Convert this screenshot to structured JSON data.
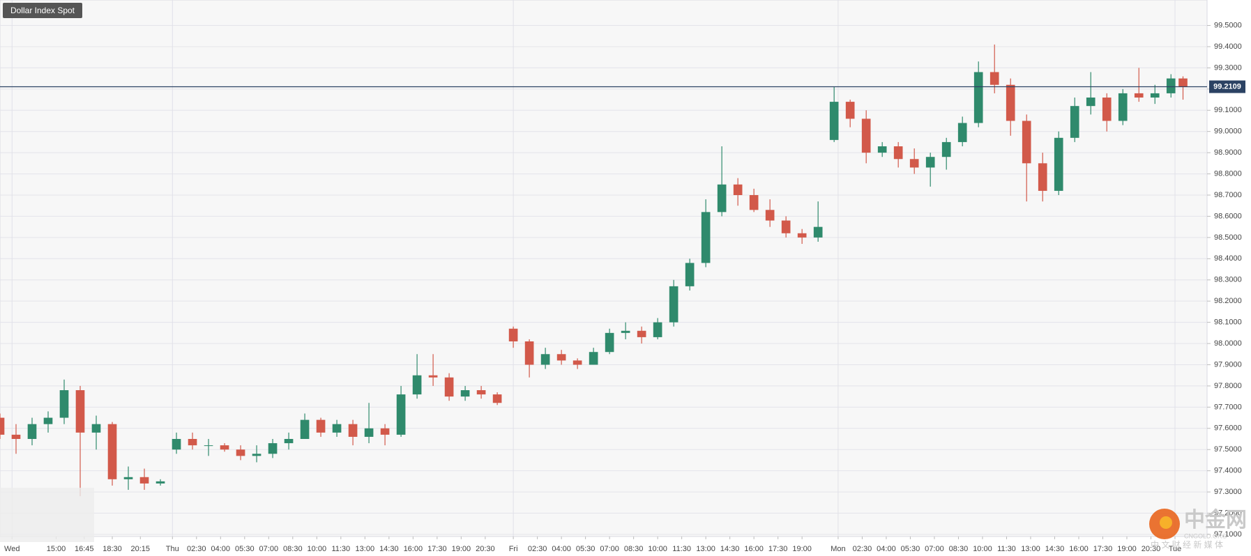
{
  "chart_data": {
    "type": "candlestick",
    "title": "Dollar Index Spot",
    "up_color": "#2f8a6c",
    "down_color": "#d2594a",
    "grid": true,
    "xlim": [
      0,
      301
    ],
    "ylim": [
      97.09,
      99.62
    ],
    "x": [
      0,
      4,
      8,
      12,
      16,
      20,
      24,
      28,
      32,
      36,
      40,
      44,
      48,
      52,
      56,
      60,
      64,
      68,
      72,
      76,
      80,
      84,
      88,
      92,
      96,
      100,
      104,
      108,
      112,
      116,
      120,
      124,
      128,
      132,
      136,
      140,
      144,
      148,
      152,
      156,
      160,
      164,
      168,
      172,
      176,
      180,
      184,
      188,
      192,
      196,
      200,
      204,
      208,
      212,
      216,
      220,
      224,
      228,
      232,
      236,
      240,
      244,
      248,
      252,
      256,
      260,
      264,
      268,
      272,
      276,
      280,
      284,
      288,
      292,
      295
    ],
    "open": [
      97.65,
      97.57,
      97.55,
      97.62,
      97.65,
      97.78,
      97.58,
      97.62,
      97.36,
      97.37,
      97.34,
      97.5,
      97.55,
      97.52,
      97.52,
      97.5,
      97.47,
      97.48,
      97.53,
      97.55,
      97.64,
      97.58,
      97.62,
      97.56,
      97.6,
      97.57,
      97.76,
      97.85,
      97.84,
      97.75,
      97.78,
      97.76,
      98.07,
      98.01,
      97.9,
      97.95,
      97.92,
      97.9,
      97.96,
      98.05,
      98.06,
      98.03,
      98.1,
      98.27,
      98.38,
      98.62,
      98.75,
      98.7,
      98.63,
      98.58,
      98.52,
      98.5,
      98.96,
      99.14,
      99.06,
      98.9,
      98.93,
      98.87,
      98.83,
      98.88,
      98.95,
      99.04,
      99.28,
      99.22,
      99.05,
      98.85,
      98.72,
      98.97,
      99.12,
      99.16,
      99.05,
      99.18,
      99.16,
      99.18,
      99.25
    ],
    "high": [
      97.67,
      97.62,
      97.65,
      97.68,
      97.83,
      97.8,
      97.66,
      97.63,
      97.42,
      97.41,
      97.36,
      97.58,
      97.58,
      97.55,
      97.53,
      97.52,
      97.52,
      97.55,
      97.58,
      97.67,
      97.65,
      97.64,
      97.64,
      97.72,
      97.62,
      97.8,
      97.95,
      97.95,
      97.86,
      97.8,
      97.8,
      97.77,
      98.08,
      98.02,
      97.98,
      97.97,
      97.93,
      97.98,
      98.07,
      98.1,
      98.08,
      98.12,
      98.3,
      98.4,
      98.68,
      98.93,
      98.78,
      98.73,
      98.68,
      98.6,
      98.54,
      98.67,
      99.21,
      99.15,
      99.1,
      98.95,
      98.95,
      98.92,
      98.9,
      98.97,
      99.07,
      99.33,
      99.41,
      99.25,
      99.08,
      98.9,
      99.0,
      99.16,
      99.28,
      99.18,
      99.2,
      99.3,
      99.22,
      99.27,
      99.26
    ],
    "low": [
      97.55,
      97.48,
      97.52,
      97.58,
      97.62,
      97.28,
      97.5,
      97.33,
      97.31,
      97.31,
      97.33,
      97.48,
      97.5,
      97.47,
      97.49,
      97.45,
      97.44,
      97.46,
      97.5,
      97.55,
      97.56,
      97.56,
      97.52,
      97.53,
      97.52,
      97.56,
      97.74,
      97.8,
      97.73,
      97.73,
      97.74,
      97.71,
      97.98,
      97.84,
      97.88,
      97.9,
      97.88,
      97.9,
      97.95,
      98.02,
      98.0,
      98.02,
      98.08,
      98.25,
      98.36,
      98.6,
      98.65,
      98.62,
      98.55,
      98.5,
      98.47,
      98.48,
      98.95,
      99.02,
      98.85,
      98.88,
      98.83,
      98.8,
      98.74,
      98.82,
      98.93,
      99.02,
      99.18,
      98.98,
      98.67,
      98.67,
      98.7,
      98.95,
      99.08,
      99.0,
      99.03,
      99.14,
      99.13,
      99.16,
      99.15
    ],
    "close": [
      97.57,
      97.55,
      97.62,
      97.65,
      97.78,
      97.58,
      97.62,
      97.36,
      97.37,
      97.34,
      97.35,
      97.55,
      97.52,
      97.52,
      97.5,
      97.47,
      97.48,
      97.53,
      97.55,
      97.64,
      97.58,
      97.62,
      97.56,
      97.6,
      97.57,
      97.76,
      97.85,
      97.84,
      97.75,
      97.78,
      97.76,
      97.72,
      98.01,
      97.9,
      97.95,
      97.92,
      97.9,
      97.96,
      98.05,
      98.06,
      98.03,
      98.1,
      98.27,
      98.38,
      98.62,
      98.75,
      98.7,
      98.63,
      98.58,
      98.52,
      98.5,
      98.55,
      99.14,
      99.06,
      98.9,
      98.93,
      98.87,
      98.83,
      98.88,
      98.95,
      99.04,
      99.28,
      99.22,
      99.05,
      98.85,
      98.72,
      98.97,
      99.12,
      99.16,
      99.05,
      99.18,
      99.16,
      99.18,
      99.25,
      99.21
    ],
    "last_price": 99.2109,
    "last_price_color": "#2b4263",
    "xticks": [
      {
        "value": 3,
        "label": "Wed"
      },
      {
        "value": 14,
        "label": "15:00"
      },
      {
        "value": 21,
        "label": "16:45"
      },
      {
        "value": 28,
        "label": "18:30"
      },
      {
        "value": 35,
        "label": "20:15"
      },
      {
        "value": 43,
        "label": "Thu"
      },
      {
        "value": 49,
        "label": "02:30"
      },
      {
        "value": 55,
        "label": "04:00"
      },
      {
        "value": 61,
        "label": "05:30"
      },
      {
        "value": 67,
        "label": "07:00"
      },
      {
        "value": 73,
        "label": "08:30"
      },
      {
        "value": 79,
        "label": "10:00"
      },
      {
        "value": 85,
        "label": "11:30"
      },
      {
        "value": 91,
        "label": "13:00"
      },
      {
        "value": 97,
        "label": "14:30"
      },
      {
        "value": 103,
        "label": "16:00"
      },
      {
        "value": 109,
        "label": "17:30"
      },
      {
        "value": 115,
        "label": "19:00"
      },
      {
        "value": 121,
        "label": "20:30"
      },
      {
        "value": 128,
        "label": "Fri"
      },
      {
        "value": 134,
        "label": "02:30"
      },
      {
        "value": 140,
        "label": "04:00"
      },
      {
        "value": 146,
        "label": "05:30"
      },
      {
        "value": 152,
        "label": "07:00"
      },
      {
        "value": 158,
        "label": "08:30"
      },
      {
        "value": 164,
        "label": "10:00"
      },
      {
        "value": 170,
        "label": "11:30"
      },
      {
        "value": 176,
        "label": "13:00"
      },
      {
        "value": 182,
        "label": "14:30"
      },
      {
        "value": 188,
        "label": "16:00"
      },
      {
        "value": 194,
        "label": "17:30"
      },
      {
        "value": 200,
        "label": "19:00"
      },
      {
        "value": 209,
        "label": "Mon"
      },
      {
        "value": 215,
        "label": "02:30"
      },
      {
        "value": 221,
        "label": "04:00"
      },
      {
        "value": 227,
        "label": "05:30"
      },
      {
        "value": 233,
        "label": "07:00"
      },
      {
        "value": 239,
        "label": "08:30"
      },
      {
        "value": 245,
        "label": "10:00"
      },
      {
        "value": 251,
        "label": "11:30"
      },
      {
        "value": 257,
        "label": "13:00"
      },
      {
        "value": 263,
        "label": "14:30"
      },
      {
        "value": 269,
        "label": "16:00"
      },
      {
        "value": 275,
        "label": "17:30"
      },
      {
        "value": 281,
        "label": "19:00"
      },
      {
        "value": 287,
        "label": "20:30"
      },
      {
        "value": 293,
        "label": "Tue"
      }
    ],
    "yticks": [
      {
        "value": 97.1,
        "label": "97.1000"
      },
      {
        "value": 97.2,
        "label": "97.2000"
      },
      {
        "value": 97.3,
        "label": "97.3000"
      },
      {
        "value": 97.4,
        "label": "97.4000"
      },
      {
        "value": 97.5,
        "label": "97.5000"
      },
      {
        "value": 97.6,
        "label": "97.6000"
      },
      {
        "value": 97.7,
        "label": "97.7000"
      },
      {
        "value": 97.8,
        "label": "97.8000"
      },
      {
        "value": 97.9,
        "label": "97.9000"
      },
      {
        "value": 98.0,
        "label": "98.0000"
      },
      {
        "value": 98.1,
        "label": "98.1000"
      },
      {
        "value": 98.2,
        "label": "98.2000"
      },
      {
        "value": 98.3,
        "label": "98.3000"
      },
      {
        "value": 98.4,
        "label": "98.4000"
      },
      {
        "value": 98.5,
        "label": "98.5000"
      },
      {
        "value": 98.6,
        "label": "98.6000"
      },
      {
        "value": 98.7,
        "label": "98.7000"
      },
      {
        "value": 98.8,
        "label": "98.8000"
      },
      {
        "value": 98.9,
        "label": "98.9000"
      },
      {
        "value": 99.0,
        "label": "99.0000"
      },
      {
        "value": 99.1,
        "label": "99.1000"
      },
      {
        "value": 99.2,
        "label": "99.2000"
      },
      {
        "value": 99.3,
        "label": "99.3000"
      },
      {
        "value": 99.4,
        "label": "99.4000"
      },
      {
        "value": 99.5,
        "label": "99.5000"
      }
    ]
  },
  "watermark": {
    "brand": "中金网",
    "site": "CNGOLD.ORG",
    "slogan": "中 文 财 经 新 媒 体"
  }
}
